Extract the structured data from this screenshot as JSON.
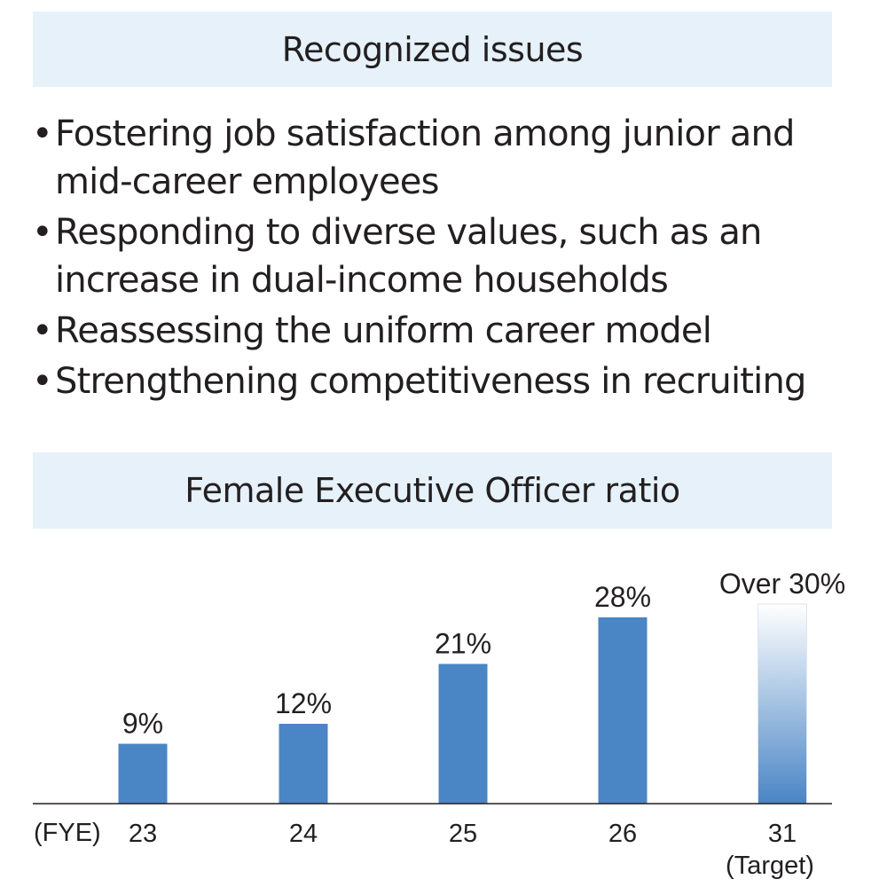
{
  "issues_section": {
    "title": "Recognized issues",
    "items": [
      "Fostering job satisfaction among junior and mid-career employees",
      "Responding to diverse values, such as an increase in dual-income households",
      "Reassessing the uniform career model",
      "Strengthening competitiveness in recruiting"
    ]
  },
  "chart_section": {
    "title": "Female Executive Officer ratio"
  },
  "chart_data": {
    "type": "bar",
    "title": "Female Executive Officer ratio",
    "x_axis_prefix": "(FYE)",
    "categories": [
      "23",
      "24",
      "25",
      "26",
      "31"
    ],
    "category_sublabels": [
      "",
      "",
      "",
      "",
      "(Target)"
    ],
    "values": [
      9,
      12,
      21,
      28,
      30
    ],
    "data_labels": [
      "9%",
      "12%",
      "21%",
      "28%",
      "Over 30%"
    ],
    "unit": "%",
    "ylim": [
      0,
      30
    ],
    "target_index": 4,
    "grid": false,
    "legend": "none",
    "colors": {
      "bar": "#4a85c5",
      "target_top": "#ffffff",
      "target_bottom": "#4a85c5",
      "axis": "#231f20",
      "header_band": "#e6f1fa",
      "text": "#231f20"
    }
  }
}
